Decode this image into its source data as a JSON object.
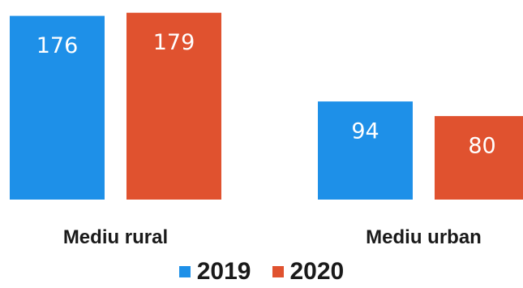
{
  "chart_data": {
    "type": "bar",
    "categories": [
      "Mediu rural",
      "Mediu urban"
    ],
    "series": [
      {
        "name": "2019",
        "values": [
          176,
          94
        ],
        "color": "#1e90e8"
      },
      {
        "name": "2020",
        "values": [
          179,
          80
        ],
        "color": "#e0522f"
      }
    ],
    "ylim": [
      0,
      185
    ],
    "grid": false,
    "legend_position": "bottom"
  }
}
